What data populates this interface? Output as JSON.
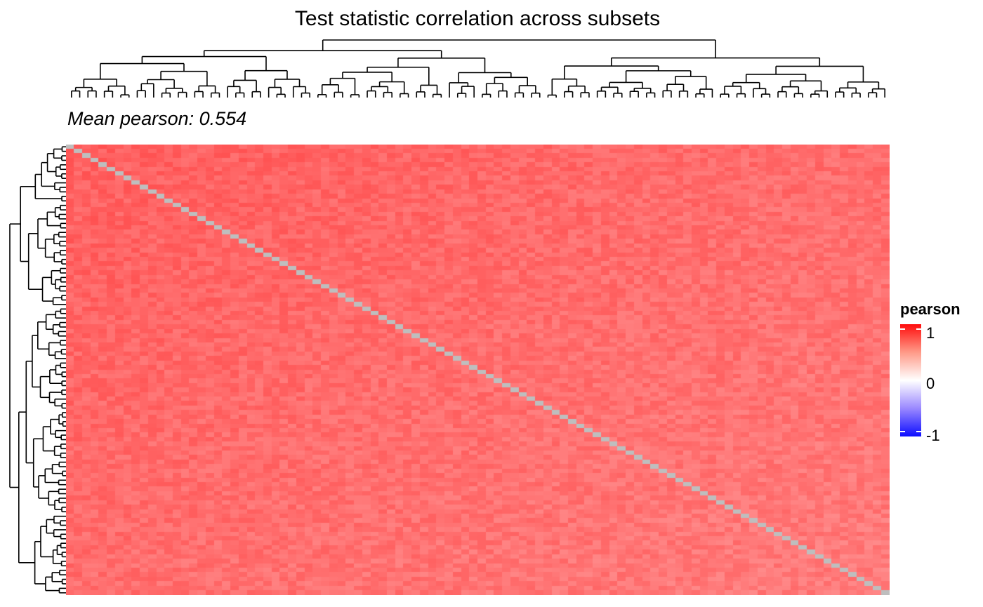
{
  "title": "Test statistic correlation across subsets",
  "subtitle": "Mean pearson: 0.554",
  "legend": {
    "title": "pearson",
    "ticks": [
      "1",
      "0",
      "-1"
    ],
    "colors": {
      "high": "#ff0d0d",
      "mid": "#ffffff",
      "low": "#0d0dff",
      "diagonal": "#bebebe"
    }
  },
  "chart_data": {
    "type": "heatmap",
    "title": "Test statistic correlation across subsets",
    "subtitle": "Mean pearson: 0.554",
    "n_rows": 100,
    "n_cols": 100,
    "value_range": [
      -1,
      1
    ],
    "mean_value": 0.554,
    "diagonal": "NA",
    "colorbar_ticks": [
      1,
      0,
      -1
    ],
    "row_dendrogram": true,
    "column_dendrogram": true,
    "legend_position": "right"
  }
}
